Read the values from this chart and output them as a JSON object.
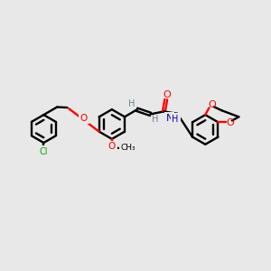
{
  "background_color": "#e8e8e8",
  "atom_colors": {
    "O": "#ff0000",
    "N": "#0000cc",
    "Cl": "#00aa00",
    "H": "#708090",
    "C": "#000000"
  },
  "figsize": [
    3.0,
    3.0
  ],
  "dpi": 100
}
